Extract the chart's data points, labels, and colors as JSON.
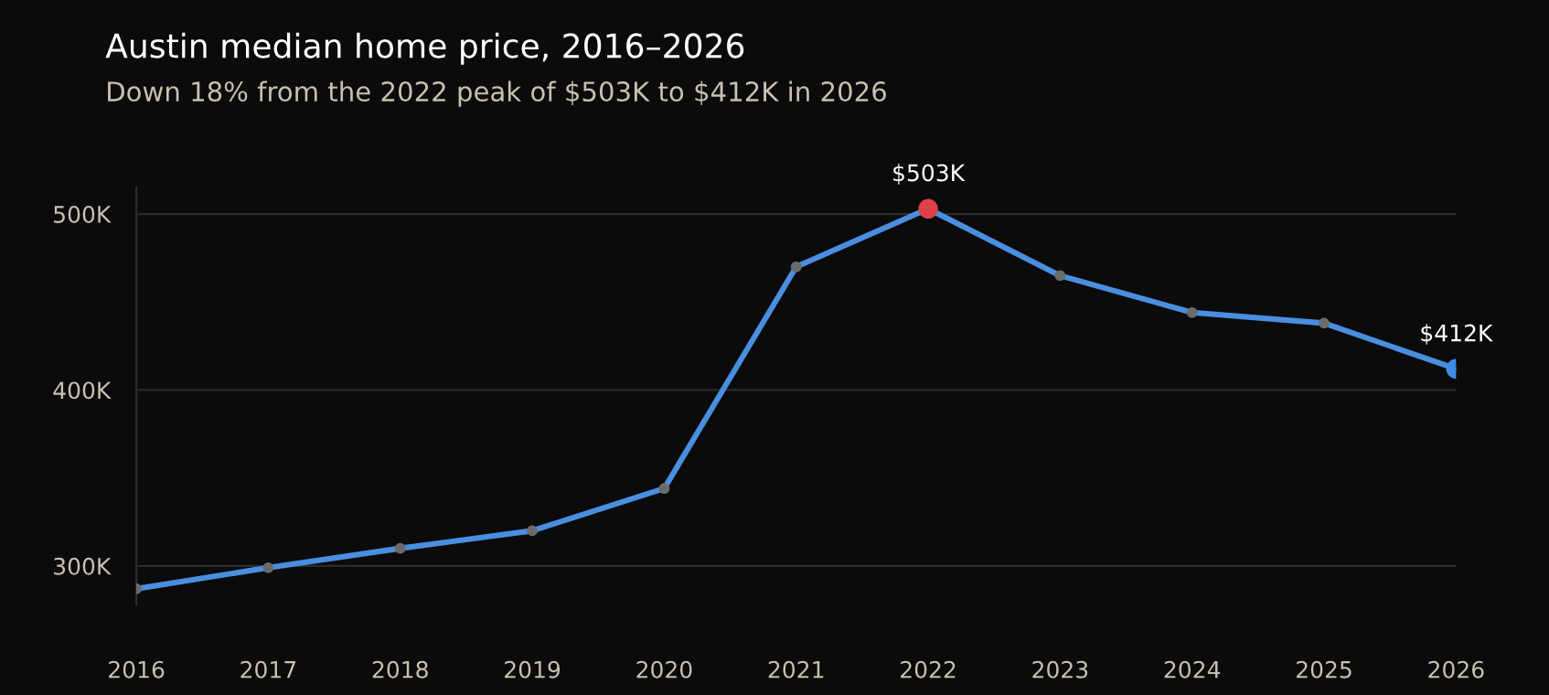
{
  "chart_data": {
    "type": "line",
    "title": "Austin median home price, 2016–2026",
    "subtitle": "Down 18% from the 2022 peak of $503K to $412K in 2026",
    "x": [
      2016,
      2017,
      2018,
      2019,
      2020,
      2021,
      2022,
      2023,
      2024,
      2025,
      2026
    ],
    "xlim": [
      2016,
      2026
    ],
    "xticks": [
      2016,
      2017,
      2018,
      2019,
      2020,
      2021,
      2022,
      2023,
      2024,
      2025,
      2026
    ],
    "series": [
      {
        "color": "#4a8ee0",
        "values": [
          287,
          299,
          310,
          320,
          344,
          470,
          503,
          465,
          444,
          438,
          412
        ],
        "colors": [
          "#6b6b6b",
          "#6b6b6b",
          "#6b6b6b",
          "#6b6b6b",
          "#6b6b6b",
          "#6b6b6b",
          "#e0404a",
          "#6b6b6b",
          "#6b6b6b",
          "#6b6b6b",
          "#3d8be6"
        ],
        "value_labels": [
          null,
          null,
          null,
          null,
          null,
          null,
          "$503K",
          null,
          null,
          null,
          "$412K"
        ]
      }
    ],
    "ylim": [
      278,
      515
    ],
    "yticks": [
      {
        "value": 300,
        "label": "300K"
      },
      {
        "value": 400,
        "label": "400K"
      },
      {
        "value": 500,
        "label": "500K"
      }
    ],
    "grid": "y",
    "marker": "circle",
    "line_style": "solid"
  }
}
